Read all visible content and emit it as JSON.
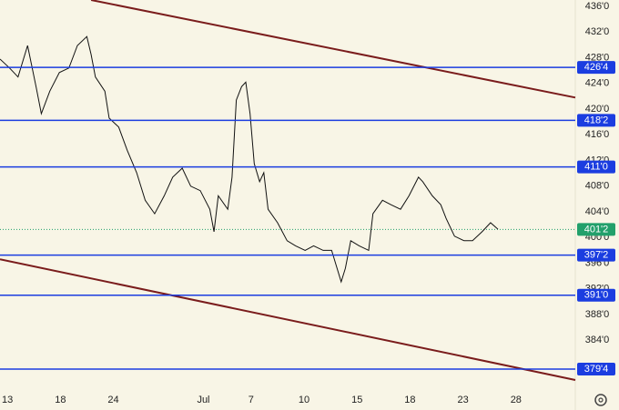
{
  "chart_data": {
    "type": "line",
    "series": [
      {
        "color": "#111111",
        "x": [
          -0.7,
          0.2,
          1.0,
          1.9,
          2.7,
          3.2,
          4.0,
          4.9,
          5.8,
          6.6,
          7.5,
          7.9,
          8.3,
          9.2,
          9.6,
          10.5,
          11.3,
          12.2,
          13.0,
          13.9,
          14.8,
          15.6,
          16.5,
          17.3,
          18.2,
          19.1,
          19.5,
          19.9,
          20.8,
          21.2,
          21.6,
          22.1,
          22.5,
          22.9,
          23.3,
          23.8,
          24.2,
          24.6,
          25.5,
          26.4,
          27.2,
          28.1,
          28.9,
          29.8,
          30.6,
          31.5,
          31.9,
          32.4,
          33.2,
          34.1,
          34.5,
          35.4,
          36.2,
          37.1,
          37.9,
          38.8,
          39.2,
          40.1,
          40.9,
          41.4,
          42.2,
          43.1,
          43.9,
          44.8,
          45.6,
          46.3
        ],
        "values": [
          427.8,
          426.4,
          425.0,
          429.9,
          423.5,
          419.3,
          422.8,
          425.7,
          426.4,
          429.9,
          431.3,
          428.5,
          425.0,
          422.8,
          418.6,
          417.2,
          413.6,
          410.1,
          405.8,
          403.7,
          406.5,
          409.4,
          410.8,
          408.0,
          407.3,
          404.4,
          400.9,
          406.5,
          404.4,
          409.4,
          421.4,
          423.5,
          424.2,
          419.3,
          411.5,
          408.7,
          410.1,
          404.4,
          402.3,
          399.5,
          398.7,
          398.0,
          398.7,
          398.0,
          398.0,
          393.1,
          395.2,
          399.5,
          398.7,
          398.0,
          403.7,
          405.8,
          405.1,
          404.4,
          406.5,
          409.4,
          408.7,
          406.5,
          405.1,
          403.0,
          400.2,
          399.5,
          399.5,
          400.9,
          402.3,
          401.3
        ]
      }
    ],
    "levels": [
      {
        "value": 426.5,
        "label": "426'4"
      },
      {
        "value": 418.25,
        "label": "418'2"
      },
      {
        "value": 411,
        "label": "411'0"
      },
      {
        "value": 397.25,
        "label": "397'2"
      },
      {
        "value": 391,
        "label": "391'0"
      },
      {
        "value": 379.5,
        "label": "379'4"
      }
    ],
    "level_color": "#1b3de0",
    "last_price": {
      "value": 401.25,
      "label": "401'2"
    },
    "last_price_color": "#22a06b",
    "trendlines": [
      {
        "x": [
          7.9,
          53.6
        ],
        "y": [
          437.0,
          421.8
        ]
      },
      {
        "x": [
          -0.7,
          53.6
        ],
        "y": [
          396.6,
          377.8
        ]
      }
    ],
    "trendline_color": "#7a1c1c",
    "xlim": [
      -0.7,
      53.6
    ],
    "ylim": [
      376.1,
      437.0
    ],
    "xticks": [
      {
        "value": 0,
        "label": "13"
      },
      {
        "value": 5,
        "label": "18"
      },
      {
        "value": 10,
        "label": "24"
      },
      {
        "value": 18.5,
        "label": "Jul"
      },
      {
        "value": 23,
        "label": "7"
      },
      {
        "value": 28,
        "label": "10"
      },
      {
        "value": 33,
        "label": "15"
      },
      {
        "value": 38,
        "label": "18"
      },
      {
        "value": 43,
        "label": "23"
      },
      {
        "value": 48,
        "label": "28"
      }
    ],
    "yticks": [
      {
        "value": 436,
        "label": "436'0"
      },
      {
        "value": 432,
        "label": "432'0"
      },
      {
        "value": 428,
        "label": "428'0"
      },
      {
        "value": 424,
        "label": "424'0"
      },
      {
        "value": 420,
        "label": "420'0"
      },
      {
        "value": 416,
        "label": "416'0"
      },
      {
        "value": 412,
        "label": "412'0"
      },
      {
        "value": 408,
        "label": "408'0"
      },
      {
        "value": 404,
        "label": "404'0"
      },
      {
        "value": 400,
        "label": "400'0"
      },
      {
        "value": 396,
        "label": "396'0"
      },
      {
        "value": 392,
        "label": "392'0"
      },
      {
        "value": 388,
        "label": "388'0"
      },
      {
        "value": 384,
        "label": "384'0"
      }
    ]
  }
}
